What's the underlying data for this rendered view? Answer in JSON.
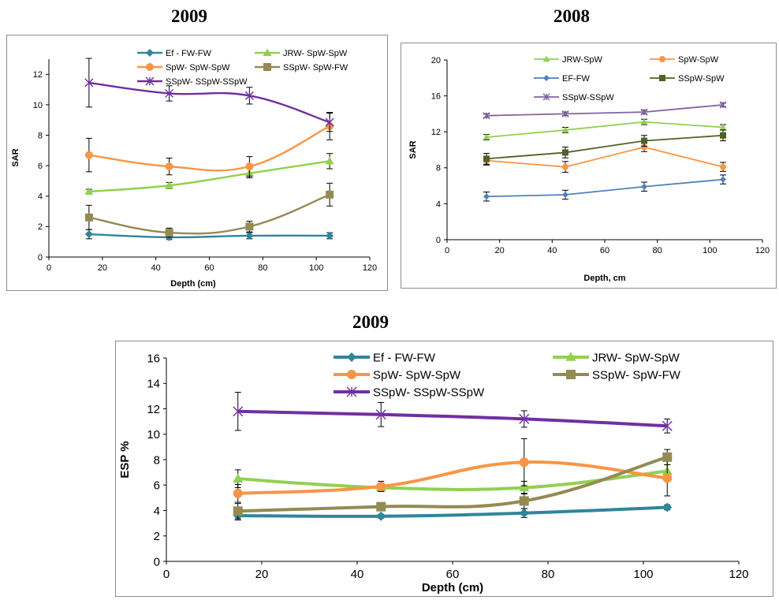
{
  "charts": [
    {
      "id": "sar2009",
      "title": "2009",
      "type": "line",
      "xlabel": "Depth (cm)",
      "ylabel": "SAR",
      "xlim": [
        0,
        120
      ],
      "ylim": [
        0,
        13
      ],
      "xticks": [
        0,
        20,
        40,
        60,
        80,
        100,
        120
      ],
      "yticks": [
        0,
        2,
        4,
        6,
        8,
        10,
        12
      ],
      "grid": false,
      "legend": "top",
      "x": [
        15,
        45,
        75,
        105
      ],
      "series": [
        {
          "name": "Ef - FW-FW",
          "color": "#31859c",
          "marker": "diamond",
          "values": [
            1.5,
            1.3,
            1.4,
            1.4
          ],
          "err": [
            0.3,
            0.15,
            0.2,
            0.2
          ]
        },
        {
          "name": "JRW- SpW-SpW",
          "color": "#92d050",
          "marker": "triangle",
          "values": [
            4.3,
            4.7,
            5.5,
            6.3
          ],
          "err": [
            0.15,
            0.2,
            0.3,
            0.5
          ]
        },
        {
          "name": "SpW- SpW-SpW",
          "color": "#f79646",
          "marker": "circle",
          "values": [
            6.7,
            5.95,
            5.95,
            8.6
          ],
          "err": [
            1.1,
            0.55,
            0.65,
            0.9
          ]
        },
        {
          "name": "SSpW- SpW-FW",
          "color": "#948a54",
          "marker": "square",
          "values": [
            2.6,
            1.6,
            2.0,
            4.1
          ],
          "err": [
            0.8,
            0.3,
            0.35,
            0.75
          ]
        },
        {
          "name": "SSpW- SSpW-SSpW",
          "color": "#7030a0",
          "marker": "star",
          "values": [
            11.45,
            10.75,
            10.6,
            8.85
          ],
          "err": [
            1.6,
            0.5,
            0.55,
            0.6
          ]
        }
      ]
    },
    {
      "id": "sar2008",
      "title": "2008",
      "type": "line",
      "xlabel": "Depth, cm",
      "ylabel": "SAR",
      "xlim": [
        0,
        120
      ],
      "ylim": [
        0,
        20
      ],
      "xticks": [
        0,
        20,
        40,
        60,
        80,
        100,
        120
      ],
      "yticks": [
        0,
        4,
        8,
        12,
        16,
        20
      ],
      "grid": false,
      "legend": "top",
      "x": [
        15,
        45,
        75,
        105
      ],
      "series": [
        {
          "name": "JRW-SpW",
          "color": "#92d050",
          "marker": "triangle",
          "values": [
            11.4,
            12.2,
            13.1,
            12.5
          ],
          "err": [
            0.3,
            0.3,
            0.3,
            0.3
          ]
        },
        {
          "name": "SpW-SpW",
          "color": "#f79646",
          "marker": "circle",
          "values": [
            8.8,
            8.1,
            10.3,
            8.1
          ],
          "err": [
            0.5,
            0.6,
            0.5,
            0.5
          ]
        },
        {
          "name": "EF-FW",
          "color": "#4f81bd",
          "marker": "diamond",
          "values": [
            4.8,
            5.0,
            5.9,
            6.7
          ],
          "err": [
            0.5,
            0.5,
            0.5,
            0.5
          ]
        },
        {
          "name": "SSpW-SpW",
          "color": "#4f6228",
          "marker": "square",
          "values": [
            9.0,
            9.7,
            11.0,
            11.6
          ],
          "err": [
            0.6,
            0.6,
            0.6,
            0.6
          ]
        },
        {
          "name": "SSpW-SSpW",
          "color": "#8064a2",
          "marker": "star",
          "values": [
            13.8,
            14.0,
            14.2,
            15.0
          ],
          "err": [
            0.2,
            0.2,
            0.2,
            0.2
          ]
        }
      ]
    },
    {
      "id": "esp2009",
      "title": "2009",
      "type": "line",
      "xlabel": "Depth (cm)",
      "ylabel": "ESP %",
      "xlim": [
        0,
        120
      ],
      "ylim": [
        0,
        16
      ],
      "xticks": [
        0,
        20,
        40,
        60,
        80,
        100,
        120
      ],
      "yticks": [
        0,
        2,
        4,
        6,
        8,
        10,
        12,
        14,
        16
      ],
      "grid": false,
      "legend": "top",
      "x": [
        15,
        45,
        75,
        105
      ],
      "series": [
        {
          "name": "Ef - FW-FW",
          "color": "#31859c",
          "marker": "diamond",
          "values": [
            3.6,
            3.55,
            3.8,
            4.25
          ],
          "err": [
            0.35,
            0.15,
            0.35,
            0.2
          ]
        },
        {
          "name": "JRW- SpW-SpW",
          "color": "#92d050",
          "marker": "triangle",
          "values": [
            6.5,
            5.8,
            5.8,
            7.1
          ],
          "err": [
            0.7,
            0.3,
            0.5,
            0.5
          ]
        },
        {
          "name": "SpW- SpW-SpW",
          "color": "#f79646",
          "marker": "circle",
          "values": [
            5.35,
            5.9,
            7.8,
            6.55
          ],
          "err": [
            0.7,
            0.4,
            1.85,
            1.4
          ]
        },
        {
          "name": "SSpW- SpW-FW",
          "color": "#948a54",
          "marker": "square",
          "values": [
            3.95,
            4.3,
            4.75,
            8.2
          ],
          "err": [
            0.6,
            0.25,
            0.6,
            0.6
          ]
        },
        {
          "name": "SSpW- SSpW-SSpW",
          "color": "#7030a0",
          "marker": "star",
          "values": [
            11.8,
            11.55,
            11.2,
            10.65
          ],
          "err": [
            1.5,
            0.95,
            0.65,
            0.55
          ]
        }
      ]
    }
  ]
}
